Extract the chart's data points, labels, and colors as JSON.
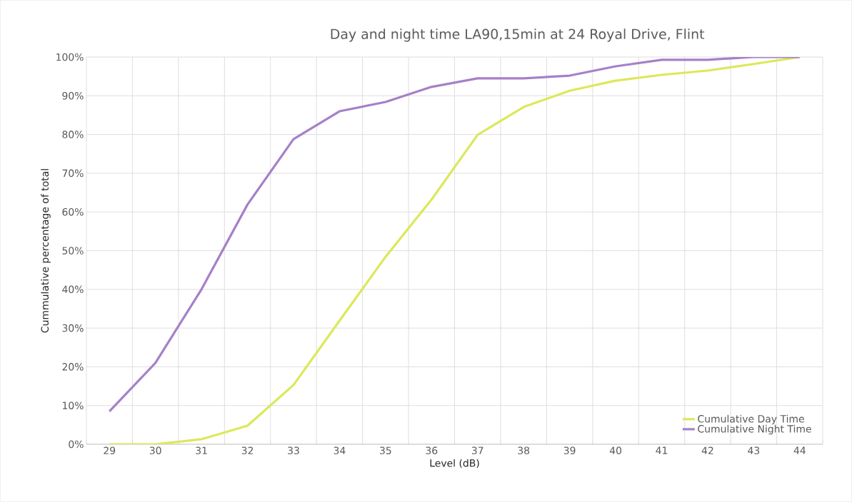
{
  "chart_data": {
    "type": "line",
    "title": "Day and night time LA90,15min at 24 Royal Drive, Flint",
    "xlabel": "Level (dB)",
    "ylabel": "Cummulative percentage of total",
    "categories": [
      "29",
      "30",
      "31",
      "32",
      "33",
      "34",
      "35",
      "36",
      "37",
      "38",
      "39",
      "40",
      "41",
      "42",
      "43",
      "44"
    ],
    "series": [
      {
        "name": "Cumulative Day Time",
        "color": "#dce85a",
        "values": [
          0,
          0,
          1.3,
          4.8,
          15.3,
          31.9,
          48.4,
          63.2,
          79.9,
          87.1,
          91.3,
          93.9,
          95.4,
          96.5,
          98.2,
          100
        ]
      },
      {
        "name": "Cumulative Night Time",
        "color": "#a680c8",
        "values": [
          8.5,
          21.0,
          40.0,
          61.9,
          78.8,
          86.0,
          88.4,
          92.3,
          94.5,
          94.5,
          95.2,
          97.6,
          99.3,
          99.3,
          100,
          100
        ]
      }
    ],
    "ylim": [
      0,
      100
    ],
    "yticks": [
      {
        "value": 0,
        "label": "0%"
      },
      {
        "value": 10,
        "label": "10%"
      },
      {
        "value": 20,
        "label": "20%"
      },
      {
        "value": 30,
        "label": "30%"
      },
      {
        "value": 40,
        "label": "40%"
      },
      {
        "value": 50,
        "label": "50%"
      },
      {
        "value": 60,
        "label": "60%"
      },
      {
        "value": 70,
        "label": "70%"
      },
      {
        "value": 80,
        "label": "80%"
      },
      {
        "value": 90,
        "label": "90%"
      },
      {
        "value": 100,
        "label": "100%"
      }
    ],
    "grid": true,
    "legend": "bottom right",
    "marker": "none",
    "line_style": "solid"
  }
}
